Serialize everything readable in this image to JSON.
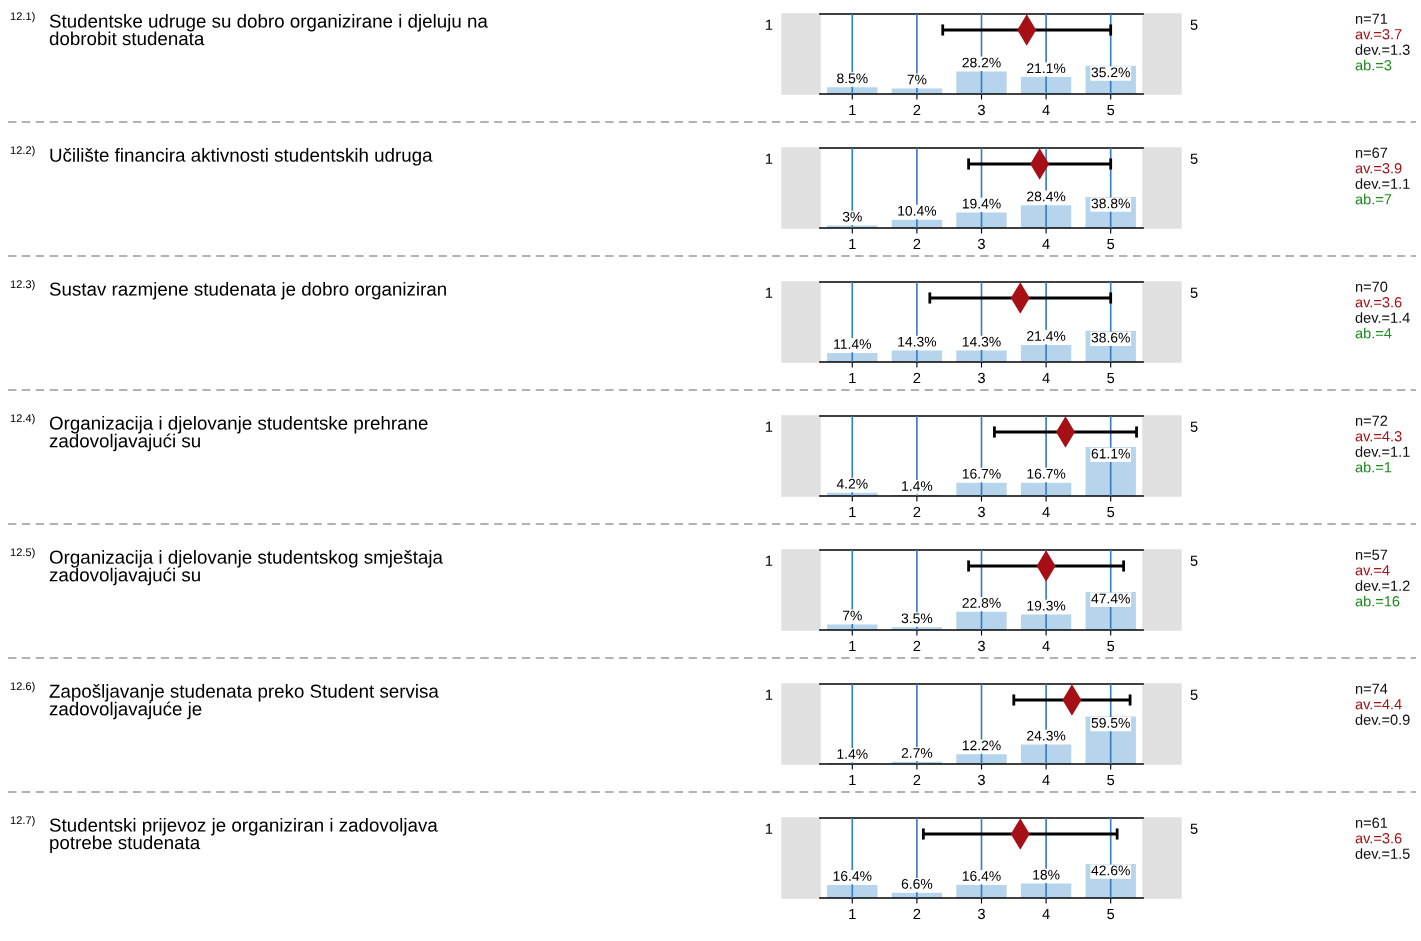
{
  "chart_data": [
    {
      "type": "bar",
      "ylabel": "Studentske udruge su dobro organizirane i djeluju na dobrobit studenata",
      "x": [
        1,
        2,
        3,
        4,
        5
      ],
      "xlim": [
        0.5,
        5.5
      ],
      "xticks": [
        1,
        2,
        3,
        4,
        5
      ],
      "ylim": [
        0,
        100
      ],
      "tick_labels": "x",
      "grid": "x",
      "series": [
        {
          "color": "#b6d4ec",
          "values": [
            8.5,
            7,
            28.2,
            21.1,
            35.2
          ],
          "value_labels": [
            "8.5%",
            "7%",
            "28.2%",
            "21.1%",
            "35.2%"
          ]
        },
        {
          "type": "scatter",
          "marker": "diamond",
          "color": "#a50f15",
          "x": [
            3.7
          ],
          "values": [
            80
          ],
          "xerrors": [
            1.3
          ]
        }
      ],
      "annotations": [
        "12.1)",
        "1",
        "5",
        "n=71",
        "av.=3.7",
        "dev.=1.3",
        "ab.=3"
      ]
    },
    {
      "type": "bar",
      "ylabel": "Učilište financira aktivnosti studentskih udruga",
      "x": [
        1,
        2,
        3,
        4,
        5
      ],
      "xlim": [
        0.5,
        5.5
      ],
      "xticks": [
        1,
        2,
        3,
        4,
        5
      ],
      "ylim": [
        0,
        100
      ],
      "tick_labels": "x",
      "grid": "x",
      "series": [
        {
          "color": "#b6d4ec",
          "values": [
            3,
            10.4,
            19.4,
            28.4,
            38.8
          ],
          "value_labels": [
            "3%",
            "10.4%",
            "19.4%",
            "28.4%",
            "38.8%"
          ]
        },
        {
          "type": "scatter",
          "marker": "diamond",
          "color": "#a50f15",
          "x": [
            3.9
          ],
          "values": [
            80
          ],
          "xerrors": [
            1.1
          ]
        }
      ],
      "annotations": [
        "12.2)",
        "1",
        "5",
        "n=67",
        "av.=3.9",
        "dev.=1.1",
        "ab.=7"
      ]
    },
    {
      "type": "bar",
      "ylabel": "Sustav razmjene studenata je dobro organiziran",
      "x": [
        1,
        2,
        3,
        4,
        5
      ],
      "xlim": [
        0.5,
        5.5
      ],
      "xticks": [
        1,
        2,
        3,
        4,
        5
      ],
      "ylim": [
        0,
        100
      ],
      "tick_labels": "x",
      "grid": "x",
      "series": [
        {
          "color": "#b6d4ec",
          "values": [
            11.4,
            14.3,
            14.3,
            21.4,
            38.6
          ],
          "value_labels": [
            "11.4%",
            "14.3%",
            "14.3%",
            "21.4%",
            "38.6%"
          ]
        },
        {
          "type": "scatter",
          "marker": "diamond",
          "color": "#a50f15",
          "x": [
            3.6
          ],
          "values": [
            80
          ],
          "xerrors": [
            1.4
          ]
        }
      ],
      "annotations": [
        "12.3)",
        "1",
        "5",
        "n=70",
        "av.=3.6",
        "dev.=1.4",
        "ab.=4"
      ]
    },
    {
      "type": "bar",
      "ylabel": "Organizacija i djelovanje studentske prehrane zadovoljavajući su",
      "x": [
        1,
        2,
        3,
        4,
        5
      ],
      "xlim": [
        0.5,
        5.5
      ],
      "xticks": [
        1,
        2,
        3,
        4,
        5
      ],
      "ylim": [
        0,
        100
      ],
      "tick_labels": "x",
      "grid": "x",
      "series": [
        {
          "color": "#b6d4ec",
          "values": [
            4.2,
            1.4,
            16.7,
            16.7,
            61.1
          ],
          "value_labels": [
            "4.2%",
            "1.4%",
            "16.7%",
            "16.7%",
            "61.1%"
          ]
        },
        {
          "type": "scatter",
          "marker": "diamond",
          "color": "#a50f15",
          "x": [
            4.3
          ],
          "values": [
            80
          ],
          "xerrors": [
            1.1
          ]
        }
      ],
      "annotations": [
        "12.4)",
        "1",
        "5",
        "n=72",
        "av.=4.3",
        "dev.=1.1",
        "ab.=1"
      ]
    },
    {
      "type": "bar",
      "ylabel": "Organizacija i djelovanje studentskog smještaja zadovoljavajući su",
      "x": [
        1,
        2,
        3,
        4,
        5
      ],
      "xlim": [
        0.5,
        5.5
      ],
      "xticks": [
        1,
        2,
        3,
        4,
        5
      ],
      "ylim": [
        0,
        100
      ],
      "tick_labels": "x",
      "grid": "x",
      "series": [
        {
          "color": "#b6d4ec",
          "values": [
            7,
            3.5,
            22.8,
            19.3,
            47.4
          ],
          "value_labels": [
            "7%",
            "3.5%",
            "22.8%",
            "19.3%",
            "47.4%"
          ]
        },
        {
          "type": "scatter",
          "marker": "diamond",
          "color": "#a50f15",
          "x": [
            4
          ],
          "values": [
            80
          ],
          "xerrors": [
            1.2
          ]
        }
      ],
      "annotations": [
        "12.5)",
        "1",
        "5",
        "n=57",
        "av.=4",
        "dev.=1.2",
        "ab.=16"
      ]
    },
    {
      "type": "bar",
      "ylabel": "Zapošljavanje studenata preko Student servisa zadovoljavajuće je",
      "x": [
        1,
        2,
        3,
        4,
        5
      ],
      "xlim": [
        0.5,
        5.5
      ],
      "xticks": [
        1,
        2,
        3,
        4,
        5
      ],
      "ylim": [
        0,
        100
      ],
      "tick_labels": "x",
      "grid": "x",
      "series": [
        {
          "color": "#b6d4ec",
          "values": [
            1.4,
            2.7,
            12.2,
            24.3,
            59.5
          ],
          "value_labels": [
            "1.4%",
            "2.7%",
            "12.2%",
            "24.3%",
            "59.5%"
          ]
        },
        {
          "type": "scatter",
          "marker": "diamond",
          "color": "#a50f15",
          "x": [
            4.4
          ],
          "values": [
            80
          ],
          "xerrors": [
            0.9
          ]
        }
      ],
      "annotations": [
        "12.6)",
        "1",
        "5",
        "n=74",
        "av.=4.4",
        "dev.=0.9"
      ]
    },
    {
      "type": "bar",
      "ylabel": "Studentski prijevoz je organiziran i zadovoljava potrebe studenata",
      "x": [
        1,
        2,
        3,
        4,
        5
      ],
      "xlim": [
        0.5,
        5.5
      ],
      "xticks": [
        1,
        2,
        3,
        4,
        5
      ],
      "ylim": [
        0,
        100
      ],
      "tick_labels": "x",
      "grid": "x",
      "series": [
        {
          "color": "#b6d4ec",
          "values": [
            16.4,
            6.6,
            16.4,
            18,
            42.6
          ],
          "value_labels": [
            "16.4%",
            "6.6%",
            "16.4%",
            "18%",
            "42.6%"
          ]
        },
        {
          "type": "scatter",
          "marker": "diamond",
          "color": "#a50f15",
          "x": [
            3.6
          ],
          "values": [
            80
          ],
          "xerrors": [
            1.5
          ]
        }
      ],
      "annotations": [
        "12.7)",
        "1",
        "5",
        "n=61",
        "av.=3.6",
        "dev.=1.5"
      ]
    }
  ]
}
